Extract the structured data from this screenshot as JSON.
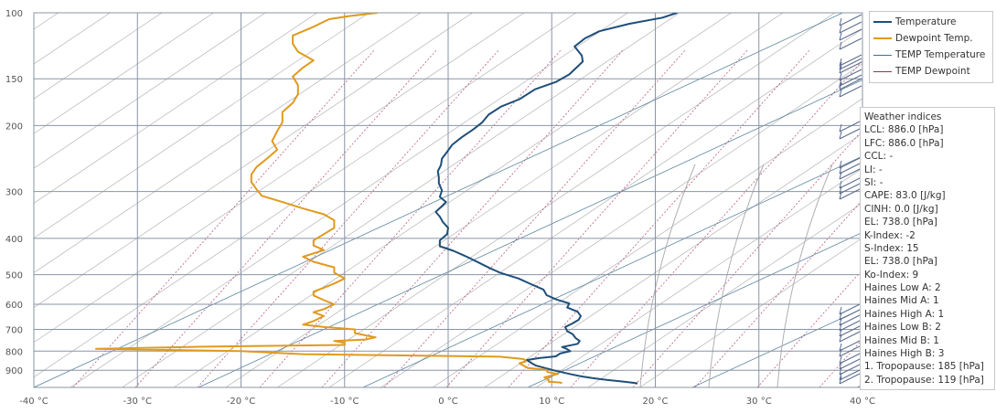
{
  "chart_data": {
    "type": "line",
    "title": "",
    "xlabel": "",
    "ylabel": "",
    "x_unit": "°C",
    "y_unit": "hPa",
    "y_scale": "log",
    "xlim": [
      -40,
      40
    ],
    "ylim": [
      1000,
      100
    ],
    "x_ticks": [
      "-40 °C",
      "-30 °C",
      "-20 °C",
      "-10 °C",
      "0 °C",
      "10 °C",
      "20 °C",
      "30 °C",
      "40 °C"
    ],
    "y_ticks": [
      "100",
      "150",
      "200",
      "300",
      "400",
      "500",
      "600",
      "700",
      "800",
      "900"
    ],
    "grid": true,
    "legend_position": "top-right",
    "series": [
      {
        "name": "Temperature",
        "color": "#1f4e79",
        "points": [
          [
            18.3,
            975
          ],
          [
            17,
            965
          ],
          [
            15.3,
            955
          ],
          [
            14,
            945
          ],
          [
            12.9,
            935
          ],
          [
            11.7,
            920
          ],
          [
            10.5,
            905
          ],
          [
            9.5,
            890
          ],
          [
            8.5,
            875
          ],
          [
            8,
            860
          ],
          [
            7.6,
            845
          ],
          [
            8.8,
            835
          ],
          [
            10.4,
            826
          ],
          [
            10.8,
            812
          ],
          [
            11.8,
            800
          ],
          [
            11.4,
            788
          ],
          [
            11,
            780
          ],
          [
            12.5,
            765
          ],
          [
            12.7,
            752
          ],
          [
            12.3,
            738
          ],
          [
            12,
            720
          ],
          [
            11.5,
            708
          ],
          [
            11.3,
            690
          ],
          [
            12,
            675
          ],
          [
            12.6,
            660
          ],
          [
            12.8,
            645
          ],
          [
            12.5,
            628
          ],
          [
            11.5,
            612
          ],
          [
            11.7,
            597
          ],
          [
            10.5,
            583
          ],
          [
            9.5,
            567
          ],
          [
            9.2,
            548
          ],
          [
            8,
            530
          ],
          [
            6.8,
            512
          ],
          [
            5,
            494
          ],
          [
            4,
            480
          ],
          [
            3,
            465
          ],
          [
            1.8,
            448
          ],
          [
            0.5,
            432
          ],
          [
            -0.8,
            420
          ],
          [
            -0.8,
            405
          ],
          [
            -0.1,
            390
          ],
          [
            0,
            375
          ],
          [
            -0.5,
            362
          ],
          [
            -0.8,
            350
          ],
          [
            -1.2,
            340
          ],
          [
            -0.7,
            330
          ],
          [
            -0.2,
            320
          ],
          [
            -0.8,
            310
          ],
          [
            -0.6,
            298
          ],
          [
            -0.9,
            285
          ],
          [
            -0.9,
            275
          ],
          [
            -1,
            265
          ],
          [
            -0.7,
            255
          ],
          [
            -0.6,
            245
          ],
          [
            -0.1,
            235
          ],
          [
            0.4,
            225
          ],
          [
            1.3,
            215
          ],
          [
            2.4,
            205
          ],
          [
            3.3,
            196
          ],
          [
            3.9,
            187
          ],
          [
            5.1,
            178
          ],
          [
            6.9,
            170
          ],
          [
            8.4,
            160
          ],
          [
            10.4,
            153
          ],
          [
            11.7,
            146
          ],
          [
            12.4,
            140
          ],
          [
            13,
            135
          ],
          [
            12.9,
            130
          ],
          [
            12.2,
            123
          ],
          [
            13.2,
            117
          ],
          [
            14.6,
            112
          ],
          [
            17.5,
            107
          ],
          [
            20.7,
            103
          ],
          [
            22.1,
            100
          ]
        ]
      },
      {
        "name": "Dewpoint Temp.",
        "color": "#e09a1e",
        "points": [
          [
            11,
            975
          ],
          [
            10.8,
            970
          ],
          [
            9.7,
            965
          ],
          [
            9.7,
            955
          ],
          [
            9.3,
            940
          ],
          [
            10.6,
            920
          ],
          [
            9.6,
            910
          ],
          [
            9.5,
            898
          ],
          [
            7.7,
            888
          ],
          [
            7.3,
            875
          ],
          [
            6.9,
            862
          ],
          [
            7.5,
            852
          ],
          [
            7.3,
            840
          ],
          [
            5,
            828
          ],
          [
            -14,
            815
          ],
          [
            -20,
            800
          ],
          [
            -34,
            789
          ],
          [
            -24,
            779
          ],
          [
            -10,
            770
          ],
          [
            -10,
            760
          ],
          [
            -11,
            752
          ],
          [
            -8,
            745
          ],
          [
            -7,
            735
          ],
          [
            -8,
            726
          ],
          [
            -9,
            716
          ],
          [
            -9,
            700
          ],
          [
            -12,
            690
          ],
          [
            -14,
            680
          ],
          [
            -13,
            665
          ],
          [
            -12,
            645
          ],
          [
            -13,
            630
          ],
          [
            -12,
            618
          ],
          [
            -11,
            600
          ],
          [
            -12,
            585
          ],
          [
            -13,
            568
          ],
          [
            -13,
            555
          ],
          [
            -12,
            542
          ],
          [
            -11,
            528
          ],
          [
            -10,
            512
          ],
          [
            -11,
            494
          ],
          [
            -11,
            478
          ],
          [
            -13,
            462
          ],
          [
            -14,
            448
          ],
          [
            -12,
            430
          ],
          [
            -13,
            418
          ],
          [
            -13,
            405
          ],
          [
            -12,
            390
          ],
          [
            -11,
            375
          ],
          [
            -11,
            358
          ],
          [
            -12,
            345
          ],
          [
            -14,
            333
          ],
          [
            -16,
            320
          ],
          [
            -18,
            308
          ],
          [
            -18.5,
            296
          ],
          [
            -19,
            283
          ],
          [
            -19,
            270
          ],
          [
            -18.5,
            258
          ],
          [
            -17.5,
            245
          ],
          [
            -16.5,
            232
          ],
          [
            -17,
            220
          ],
          [
            -16.5,
            207
          ],
          [
            -16,
            196
          ],
          [
            -16,
            184
          ],
          [
            -15,
            174
          ],
          [
            -14.5,
            165
          ],
          [
            -14.5,
            156
          ],
          [
            -15,
            148
          ],
          [
            -14,
            140
          ],
          [
            -13,
            134
          ],
          [
            -14.5,
            127
          ],
          [
            -15,
            121
          ],
          [
            -15,
            115
          ],
          [
            -13,
            109
          ],
          [
            -11.5,
            104
          ],
          [
            -9.5,
            102
          ],
          [
            -6.8,
            100
          ]
        ]
      },
      {
        "name": "TEMP Temperature",
        "color": "#3f6f8f",
        "points": []
      },
      {
        "name": "TEMP Dewpoint",
        "color": "#a82850",
        "points": []
      }
    ]
  },
  "indices": {
    "title": "Weather indices",
    "rows": [
      "LCL: 886.0 [hPa]",
      "LFC: 886.0 [hPa]",
      "CCL: -",
      "LI: -",
      "SI: -",
      "CAPE: 83.0 [J/kg]",
      "CINH: 0.0 [J/kg]",
      "EL: 738.0 [hPa]",
      "K-Index: -2",
      "S-Index: 15",
      "EL: 738.0 [hPa]",
      "Ko-Index: 9",
      "Haines Low A: 2",
      "Haines Mid A: 1",
      "Haines High A: 1",
      "Haines Low B: 2",
      "Haines Mid B: 1",
      "Haines High B: 3",
      "1. Tropopause: 185 [hPa]",
      "2. Tropopause: 119 [hPa]"
    ]
  }
}
